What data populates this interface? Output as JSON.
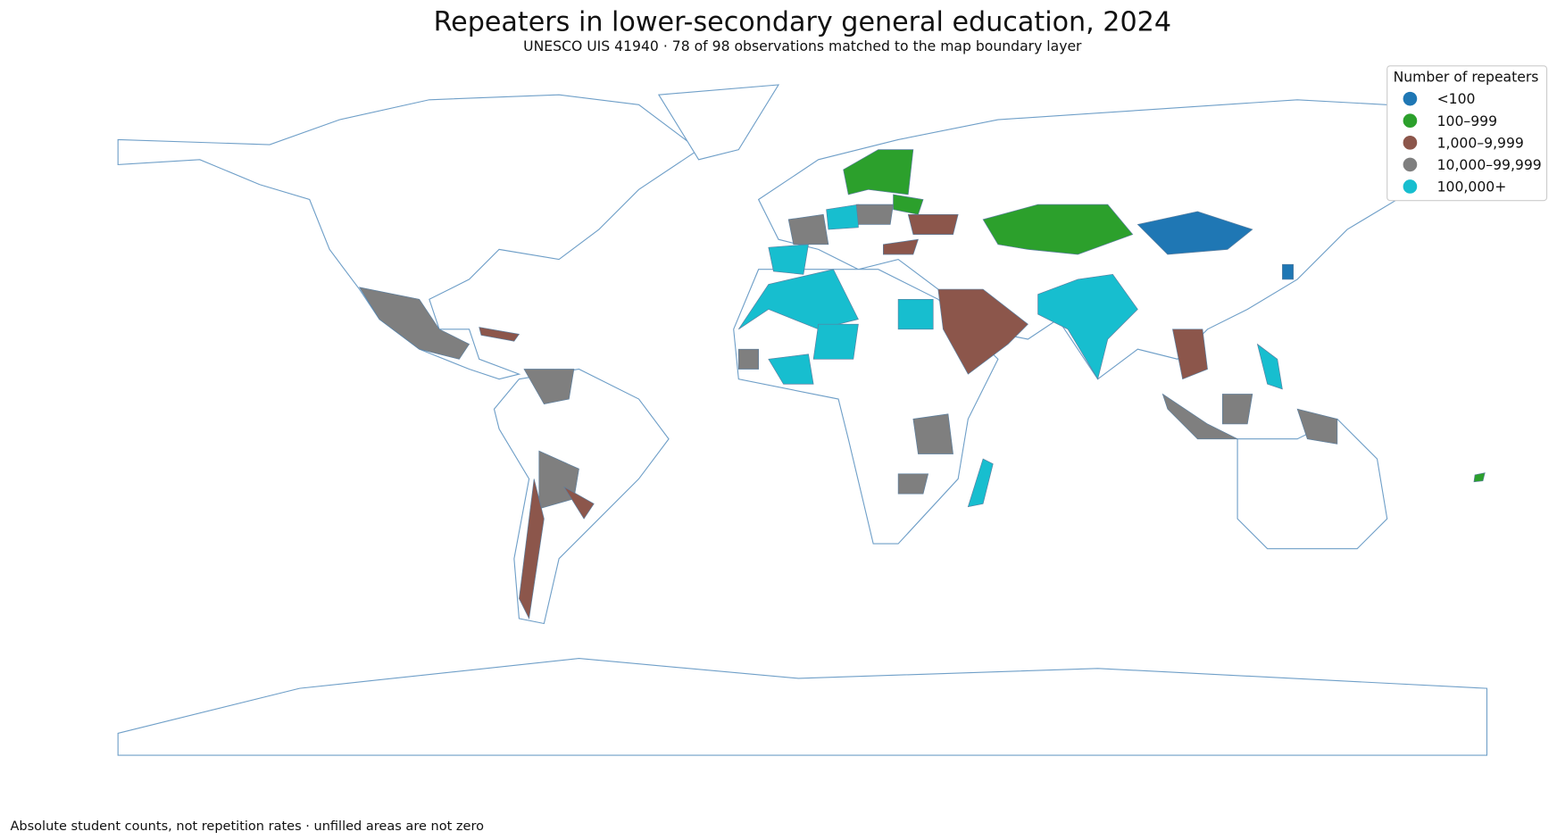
{
  "header": {
    "title": "Repeaters in lower-secondary general education, 2024",
    "subtitle": "UNESCO UIS 41940 · 78 of 98 observations matched to the map boundary layer"
  },
  "legend": {
    "title": "Number of repeaters",
    "items": [
      {
        "label": "<100",
        "color": "#1f77b4"
      },
      {
        "label": "100–999",
        "color": "#2ca02c"
      },
      {
        "label": "1,000–9,999",
        "color": "#8c564b"
      },
      {
        "label": "10,000–99,999",
        "color": "#7f7f7f"
      },
      {
        "label": "100,000+",
        "color": "#17becf"
      }
    ]
  },
  "footnote": "Absolute student counts, not repetition rates · unfilled areas are not zero"
}
